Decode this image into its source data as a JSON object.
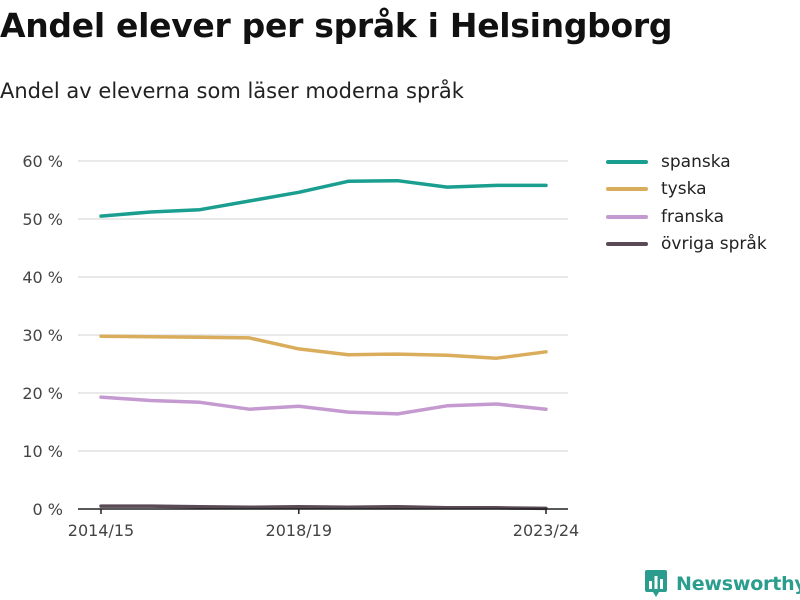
{
  "title": "Andel elever per språk i Helsingborg",
  "subtitle": "Andel av eleverna som läser moderna språk",
  "brand": {
    "name": "Newsworthy",
    "color": "#2a9d8f",
    "icon": "bar-chart-pin-icon"
  },
  "chart_data": {
    "type": "line",
    "title": "Andel elever per språk i Helsingborg",
    "subtitle": "Andel av eleverna som läser moderna språk",
    "xlabel": "",
    "ylabel": "",
    "x": [
      "2014/15",
      "2015/16",
      "2016/17",
      "2017/18",
      "2018/19",
      "2019/20",
      "2020/21",
      "2021/22",
      "2022/23",
      "2023/24"
    ],
    "x_tick_labels": [
      "2014/15",
      "2018/19",
      "2023/24"
    ],
    "y_ticks": [
      0,
      10,
      20,
      30,
      40,
      50,
      60
    ],
    "y_tick_labels": [
      "0 %",
      "10 %",
      "20 %",
      "30 %",
      "40 %",
      "50 %",
      "60 %"
    ],
    "ylim": [
      0,
      60
    ],
    "grid": true,
    "legend_position": "right",
    "series": [
      {
        "name": "spanska",
        "color": "#1a9e8f",
        "values": [
          50.5,
          51.2,
          51.6,
          53.1,
          54.6,
          56.5,
          56.6,
          55.5,
          55.8,
          55.8
        ]
      },
      {
        "name": "tyska",
        "color": "#d9ad5b",
        "values": [
          29.8,
          29.7,
          29.6,
          29.5,
          27.6,
          26.6,
          26.7,
          26.5,
          26.0,
          27.1
        ]
      },
      {
        "name": "franska",
        "color": "#c49ad0",
        "values": [
          19.3,
          18.7,
          18.4,
          17.2,
          17.7,
          16.7,
          16.4,
          17.8,
          18.1,
          17.2
        ]
      },
      {
        "name": "övriga språk",
        "color": "#5a4a55",
        "values": [
          0.5,
          0.5,
          0.4,
          0.3,
          0.4,
          0.3,
          0.4,
          0.2,
          0.2,
          0.1
        ]
      }
    ]
  }
}
